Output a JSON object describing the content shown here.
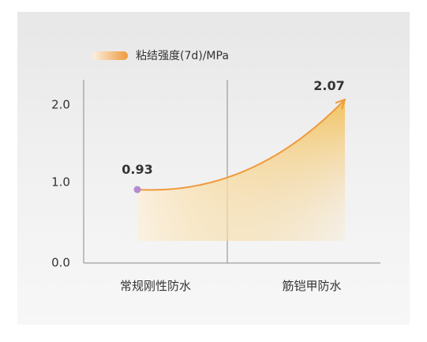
{
  "chart_data": {
    "type": "area",
    "categories": [
      "常规刚性防水",
      "筋铠甲防水"
    ],
    "series": [
      {
        "name": "粘结强度(7d)/MPa",
        "values": [
          0.93,
          2.07
        ]
      }
    ],
    "data_labels": [
      "0.93",
      "2.07"
    ],
    "y_ticks": [
      "0.0",
      "1.0",
      "2.0"
    ],
    "ylim": [
      0,
      2.4
    ],
    "grid": false,
    "legend_position": "top-left",
    "colors": {
      "line": "#ef9a3c",
      "start_point": "#b58ad0",
      "area_top": "#f2bf52",
      "area_bottom": "#fbf1e0",
      "axis": "#8a8a8a",
      "text": "#333333"
    }
  }
}
